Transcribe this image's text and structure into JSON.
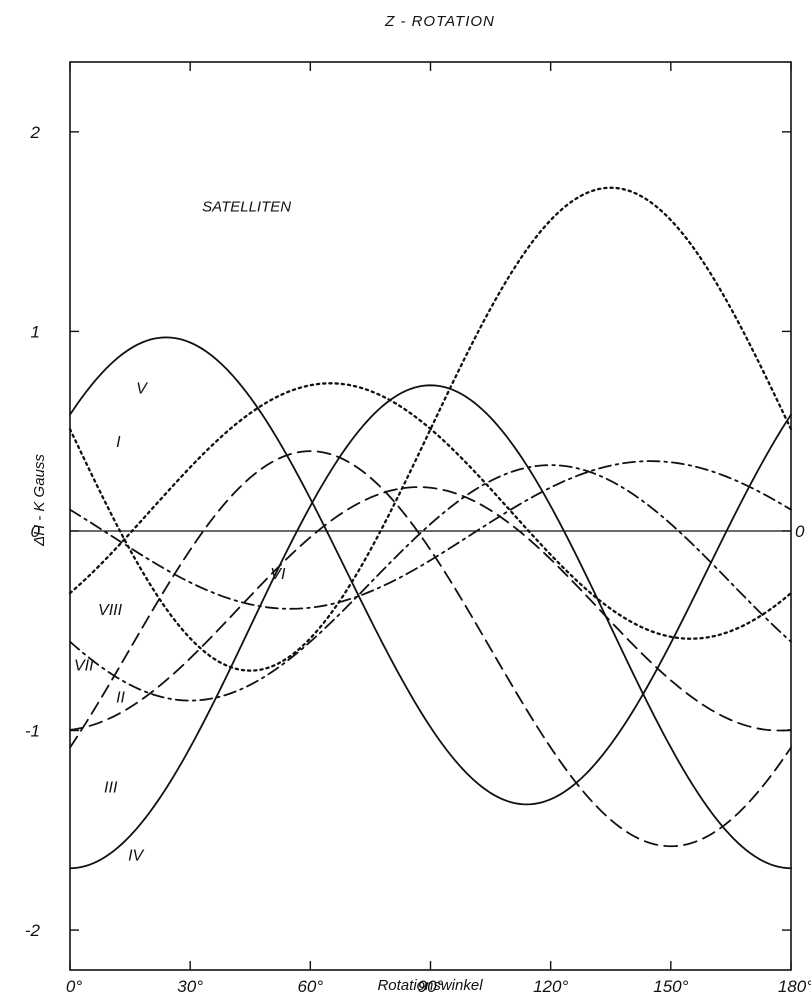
{
  "chart_data": {
    "type": "line",
    "title": "Z - ROTATION",
    "xlabel": "Rotationswinkel",
    "ylabel": "ΔH - K Gauss",
    "annotation": "SATELLITEN",
    "zero_label": "0",
    "xlim": [
      0,
      180
    ],
    "ylim": [
      -2.2,
      2.35
    ],
    "x_ticks": [
      0,
      30,
      60,
      90,
      120,
      150,
      180
    ],
    "x_tick_labels": [
      "0°",
      "30°",
      "60°",
      "90°",
      "120°",
      "150°",
      "180°"
    ],
    "y_ticks": [
      -2,
      -1,
      0,
      1,
      2
    ],
    "y_tick_labels": [
      "-2",
      "-1",
      "0",
      "1",
      "2"
    ],
    "grid": false,
    "series": [
      {
        "name": "I",
        "style": "dotted",
        "params": {
          "a": 0.1,
          "r": 0.64,
          "peak": 65,
          "n": 2
        }
      },
      {
        "name": "II",
        "style": "dashed",
        "params": {
          "a": -0.39,
          "r": 0.61,
          "peak": 87,
          "n": 2
        }
      },
      {
        "name": "III",
        "style": "dashed",
        "params": {
          "a": -0.59,
          "r": 0.99,
          "peak": 60,
          "n": 2
        }
      },
      {
        "name": "IV",
        "style": "solid",
        "params": {
          "a": -0.48,
          "r": 1.21,
          "peak": 90,
          "n": 2
        }
      },
      {
        "name": "V",
        "style": "solid",
        "params": {
          "a": -0.2,
          "r": 1.17,
          "peak": 24,
          "n": 2
        }
      },
      {
        "name": "VI",
        "style": "dashdot",
        "params": {
          "a": -0.02,
          "r": 0.37,
          "peak": 145,
          "n": 2
        }
      },
      {
        "name": "VII",
        "style": "dashdot",
        "params": {
          "a": -0.26,
          "r": 0.59,
          "peak": 120,
          "n": 2
        }
      },
      {
        "name": "VIII",
        "style": "dotted",
        "params": {
          "a": 0.51,
          "r": 1.21,
          "peak": 135,
          "n": 2
        }
      }
    ],
    "series_label_positions": {
      "I": [
        11.5,
        0.45
      ],
      "II": [
        11.5,
        -0.83
      ],
      "III": [
        8.5,
        -1.28
      ],
      "IV": [
        14.5,
        -1.62
      ],
      "V": [
        16.5,
        0.72
      ],
      "VI": [
        50,
        -0.21
      ],
      "VII": [
        1,
        -0.67
      ],
      "VIII": [
        7,
        -0.39
      ]
    },
    "annotation_position": [
      33,
      1.63
    ]
  }
}
